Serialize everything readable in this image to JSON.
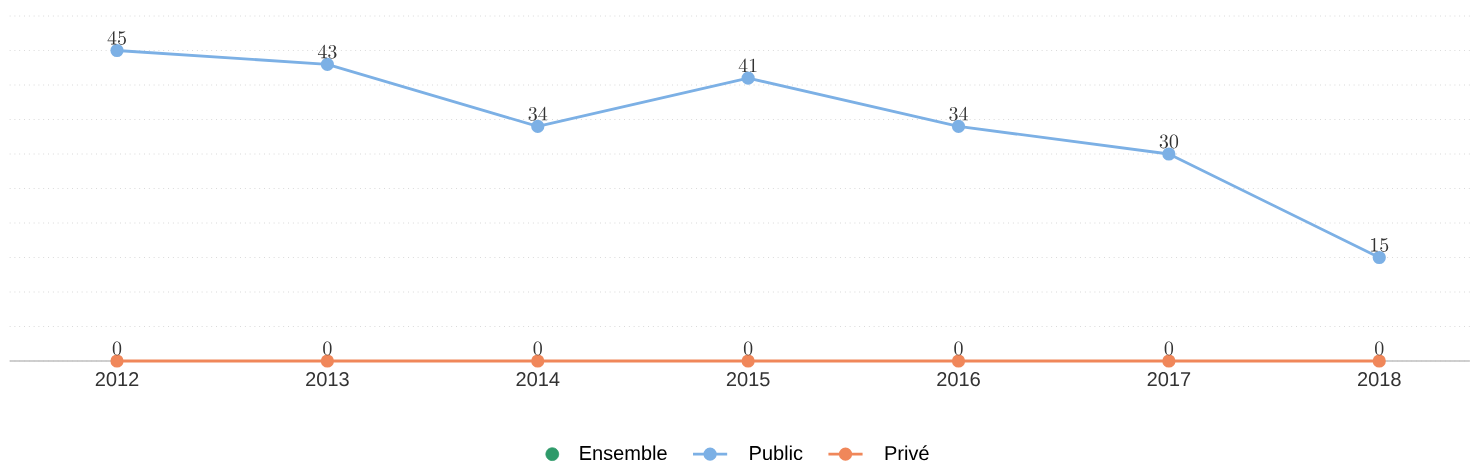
{
  "chart_data": {
    "type": "line",
    "categories": [
      "2012",
      "2013",
      "2014",
      "2015",
      "2016",
      "2017",
      "2018"
    ],
    "series": [
      {
        "name": "Ensemble",
        "color": "#2e9a6a",
        "values": [
          null,
          null,
          null,
          null,
          null,
          null,
          null
        ]
      },
      {
        "name": "Public",
        "color": "#7cb0e5",
        "values": [
          45,
          43,
          34,
          41,
          34,
          30,
          15
        ]
      },
      {
        "name": "Privé",
        "color": "#f0875a",
        "values": [
          0,
          0,
          0,
          0,
          0,
          0,
          0
        ]
      }
    ],
    "ylim": [
      0,
      50
    ],
    "yticks": [
      {
        "value": 0,
        "label": null
      },
      {
        "value": 5,
        "label": null
      },
      {
        "value": 10,
        "label": null
      },
      {
        "value": 15,
        "label": null
      },
      {
        "value": 20,
        "label": null
      },
      {
        "value": 25,
        "label": null
      },
      {
        "value": 30,
        "label": null
      },
      {
        "value": 35,
        "label": null
      },
      {
        "value": 40,
        "label": null
      },
      {
        "value": 45,
        "label": null
      },
      {
        "value": 50,
        "label": null
      }
    ],
    "tick_labels": "x",
    "grid": "y",
    "legend": "bottom",
    "marker": "circle",
    "line_style": "solid",
    "data_labels": true
  }
}
